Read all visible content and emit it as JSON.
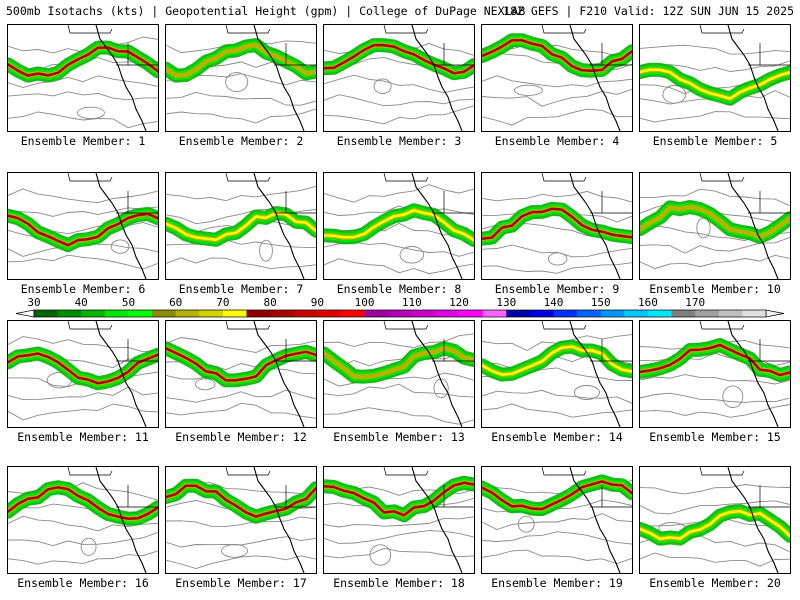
{
  "header": {
    "left": "500mb Isotachs (kts) | Geopotential Height (gpm) | College of DuPage NEXLAB",
    "right": "18Z GEFS | F210 Valid: 12Z SUN JUN 15 2025"
  },
  "colors": {
    "land": "#ffffff",
    "contour": "#8a8a8a",
    "coast": "#000000"
  },
  "colorbar": {
    "ticks": [
      "30",
      "40",
      "50",
      "60",
      "70",
      "80",
      "90",
      "100",
      "110",
      "120",
      "130",
      "140",
      "150",
      "160",
      "170"
    ],
    "bins": [
      "#006400",
      "#008c00",
      "#00b400",
      "#00e600",
      "#00ff00",
      "#8c8c00",
      "#b4b400",
      "#d2d200",
      "#ffff00",
      "#8c0000",
      "#aa0000",
      "#c80000",
      "#e10000",
      "#ff0000",
      "#a000a0",
      "#b400b4",
      "#c800c8",
      "#e100e1",
      "#ff00ff",
      "#ff64ff",
      "#0000aa",
      "#0000dc",
      "#0032ff",
      "#0064ff",
      "#0096ff",
      "#00c8ff",
      "#00e6ff",
      "#808080",
      "#a0a0a0",
      "#c0c0c0",
      "#e0e0e0"
    ]
  },
  "members": [
    {
      "label": "Ensemble Member: 1",
      "max": 80
    },
    {
      "label": "Ensemble Member: 2",
      "max": 60
    },
    {
      "label": "Ensemble Member: 3",
      "max": 80
    },
    {
      "label": "Ensemble Member: 4",
      "max": 80
    },
    {
      "label": "Ensemble Member: 5",
      "max": 70
    },
    {
      "label": "Ensemble Member: 6",
      "max": 80
    },
    {
      "label": "Ensemble Member: 7",
      "max": 70
    },
    {
      "label": "Ensemble Member: 8",
      "max": 70
    },
    {
      "label": "Ensemble Member: 9",
      "max": 80
    },
    {
      "label": "Ensemble Member: 10",
      "max": 60
    },
    {
      "label": "Ensemble Member: 11",
      "max": 80
    },
    {
      "label": "Ensemble Member: 12",
      "max": 80
    },
    {
      "label": "Ensemble Member: 13",
      "max": 60
    },
    {
      "label": "Ensemble Member: 14",
      "max": 70
    },
    {
      "label": "Ensemble Member: 15",
      "max": 80
    },
    {
      "label": "Ensemble Member: 16",
      "max": 80
    },
    {
      "label": "Ensemble Member: 17",
      "max": 80
    },
    {
      "label": "Ensemble Member: 18",
      "max": 80
    },
    {
      "label": "Ensemble Member: 19",
      "max": 80
    },
    {
      "label": "Ensemble Member: 20",
      "max": 70
    }
  ]
}
